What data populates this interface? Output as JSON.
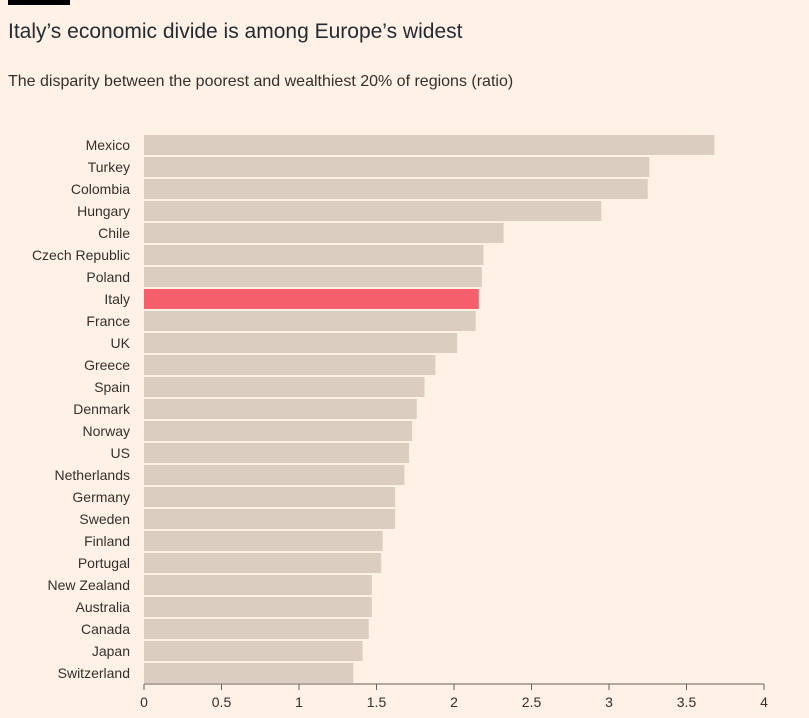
{
  "header": {
    "title": "Italy’s economic divide is among Europe’s widest",
    "subtitle": "The disparity between the poorest and wealthiest 20% of regions (ratio)"
  },
  "colors": {
    "background": "#fff1e5",
    "bar": "#dbcdbf",
    "highlight": "#f55f6c",
    "text": "#33302e",
    "axis": "#66605c"
  },
  "chart_data": {
    "type": "bar",
    "orientation": "horizontal",
    "title": "Italy’s economic divide is among Europe’s widest",
    "subtitle": "The disparity between the poorest and wealthiest 20% of regions (ratio)",
    "xlabel": "",
    "ylabel": "",
    "xlim": [
      0,
      4
    ],
    "xticks": [
      {
        "value": 0,
        "label": "0"
      },
      {
        "value": 0.5,
        "label": "0.5"
      },
      {
        "value": 1,
        "label": "1"
      },
      {
        "value": 1.5,
        "label": "1.5"
      },
      {
        "value": 2,
        "label": "2"
      },
      {
        "value": 2.5,
        "label": "2.5"
      },
      {
        "value": 3,
        "label": "3"
      },
      {
        "value": 3.5,
        "label": "3.5"
      },
      {
        "value": 4,
        "label": "4"
      }
    ],
    "grid": false,
    "highlight": "Italy",
    "categories": [
      "Mexico",
      "Turkey",
      "Colombia",
      "Hungary",
      "Chile",
      "Czech Republic",
      "Poland",
      "Italy",
      "France",
      "UK",
      "Greece",
      "Spain",
      "Denmark",
      "Norway",
      "US",
      "Netherlands",
      "Germany",
      "Sweden",
      "Finland",
      "Portugal",
      "New Zealand",
      "Australia",
      "Canada",
      "Japan",
      "Switzerland"
    ],
    "values": [
      3.68,
      3.26,
      3.25,
      2.95,
      2.32,
      2.19,
      2.18,
      2.16,
      2.14,
      2.02,
      1.88,
      1.81,
      1.76,
      1.73,
      1.71,
      1.68,
      1.62,
      1.62,
      1.54,
      1.53,
      1.47,
      1.47,
      1.45,
      1.41,
      1.35
    ]
  }
}
